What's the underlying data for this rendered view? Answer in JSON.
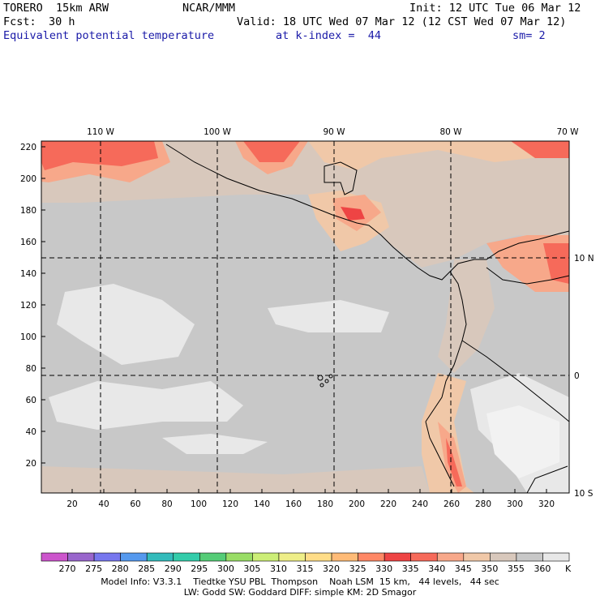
{
  "header": {
    "model": "TORERO  15km ARW",
    "center": "NCAR/MMM",
    "init": "Init: 12 UTC Tue 06 Mar 12",
    "fcst_label": "Fcst:",
    "fcst_value": "30 h",
    "valid": "Valid: 18 UTC Wed 07 Mar 12 (12 CST Wed 07 Mar 12)",
    "field": "Equivalent potential temperature",
    "level": "at k-index =  44",
    "smoothing": "sm= 2"
  },
  "map": {
    "top_lon_labels": [
      "110 W",
      "100 W",
      "90 W",
      "80 W",
      "70 W"
    ],
    "right_lat_labels": [
      "10 N",
      "0",
      "10 S"
    ],
    "y_grid_labels": [
      "220",
      "200",
      "180",
      "160",
      "140",
      "120",
      "100",
      "80",
      "60",
      "40",
      "20"
    ],
    "x_grid_labels": [
      "20",
      "40",
      "60",
      "80",
      "100",
      "120",
      "140",
      "160",
      "180",
      "200",
      "220",
      "240",
      "260",
      "280",
      "300",
      "320"
    ]
  },
  "colorbar": {
    "unit": "K",
    "levels": [
      "270",
      "275",
      "280",
      "285",
      "290",
      "295",
      "300",
      "305",
      "310",
      "315",
      "320",
      "325",
      "330",
      "335",
      "340",
      "345",
      "350",
      "355",
      "360"
    ],
    "colors": [
      "#cc55cc",
      "#9966cc",
      "#7777ee",
      "#5599ee",
      "#33bbbb",
      "#33ccaa",
      "#55cc77",
      "#99dd66",
      "#ccee77",
      "#eeee88",
      "#ffdd88",
      "#ffbb77",
      "#ff8866",
      "#ee4444",
      "#f66a5a",
      "#f7a88a",
      "#f0c8a8",
      "#d8c8bc",
      "#c8c8c8",
      "#e8e8e8"
    ]
  },
  "footer": {
    "line1": "Model Info: V3.3.1    Tiedtke YSU PBL  Thompson    Noah LSM  15 km,   44 levels,   44 sec",
    "line2": "LW: Godd SW: Goddard DIFF: simple KM: 2D Smagor"
  }
}
